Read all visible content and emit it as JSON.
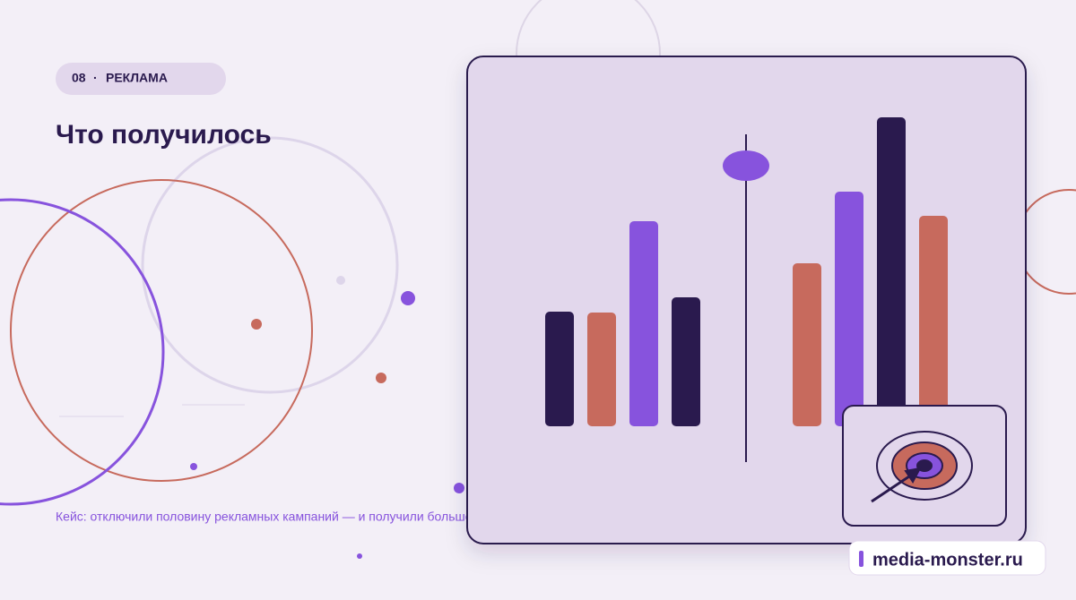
{
  "badge": {
    "number": "08",
    "separator": "·",
    "label": "РЕКЛАМА"
  },
  "title": "Что получилось",
  "caption": "Кейс: отключили половину рекламных кампаний — и получили больше…",
  "brand": "media-monster.ru"
}
